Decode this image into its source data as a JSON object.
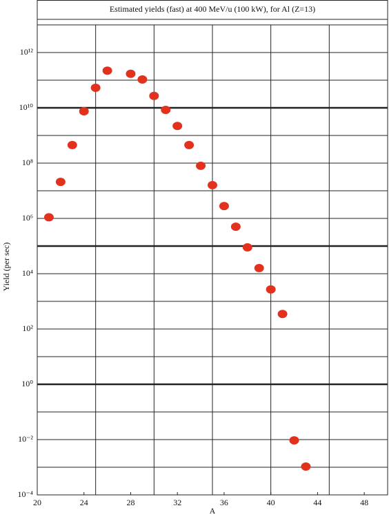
{
  "chart_data": {
    "type": "scatter",
    "title": "Estimated yields (fast) at 400 MeV/u (100 kW), for Al (Z=13)",
    "x_label": "A",
    "y_label": "Yield (per sec)",
    "y_scale": "log",
    "color": "#e2321e",
    "x": [
      21,
      22,
      23,
      24,
      25,
      26,
      28,
      29,
      30,
      31,
      32,
      33,
      34,
      35,
      36,
      37,
      38,
      39,
      40,
      41,
      42,
      43
    ],
    "values": [
      1100000.0,
      21000000.0,
      450000000.0,
      7500000000.0,
      53000000000.0,
      220000000000.0,
      170000000000.0,
      106000000000.0,
      27000000000.0,
      8400000000.0,
      2200000000.0,
      450000000.0,
      80000000.0,
      16000000.0,
      2800000.0,
      500000.0,
      90000.0,
      16000.0,
      2700,
      350,
      0.0094,
      0.00106
    ],
    "xlim": [
      20,
      50
    ],
    "ylim": [
      0.0001,
      10000000000000.0
    ],
    "xticks": [
      20,
      24,
      28,
      32,
      36,
      40,
      44,
      48
    ],
    "yticks": [
      {
        "value": 0.0001,
        "label": "10⁻⁴"
      },
      {
        "value": 0.01,
        "label": "10⁻²"
      },
      {
        "value": 1,
        "label": "10⁰"
      },
      {
        "value": 100,
        "label": "10²"
      },
      {
        "value": 10000.0,
        "label": "10⁴"
      },
      {
        "value": 1000000.0,
        "label": "10⁶"
      },
      {
        "value": 100000000.0,
        "label": "10⁸"
      },
      {
        "value": 10000000000.0,
        "label": "10¹⁰"
      },
      {
        "value": 1000000000000.0,
        "label": "10¹²"
      }
    ],
    "xgrid": [
      25,
      30,
      35,
      40,
      45
    ],
    "ygrid": [
      0.001,
      0.01,
      0.1,
      1,
      10,
      100,
      1000.0,
      10000.0,
      100000.0,
      1000000.0,
      10000000.0,
      100000000.0,
      1000000000.0,
      10000000000.0,
      100000000000.0,
      1000000000000.0
    ],
    "ygrid_major": [
      1,
      100000.0,
      10000000000.0
    ]
  }
}
